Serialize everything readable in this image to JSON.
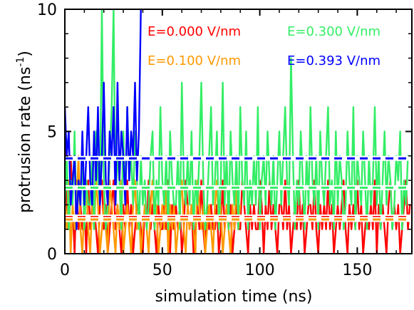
{
  "chart_data": {
    "type": "line",
    "xlabel": "simulation time (ns)",
    "ylabel_main": "protrusion rate (ns",
    "ylabel_sup": "-1",
    "ylabel_close": ")",
    "xlim": [
      0,
      178
    ],
    "ylim": [
      0,
      10
    ],
    "xticks": [
      0,
      50,
      100,
      150
    ],
    "yticks": [
      0,
      5,
      10
    ],
    "grid": false,
    "legend_placement": "top",
    "series": [
      {
        "name": "E=0.000 V/nm",
        "color": "#ff0000",
        "mean": 1.5,
        "x": [
          0,
          1,
          2,
          3,
          4,
          5,
          6,
          7,
          8,
          9,
          10,
          11,
          12,
          13,
          14,
          15,
          16,
          17,
          18,
          19,
          20,
          21,
          22,
          23,
          24,
          25,
          26,
          27,
          28,
          29,
          30,
          31,
          32,
          33,
          34,
          35,
          36,
          37,
          38,
          39,
          40,
          41,
          42,
          43,
          44,
          45,
          46,
          47,
          48,
          49,
          50,
          51,
          52,
          53,
          54,
          55,
          56,
          57,
          58,
          59,
          60,
          61,
          62,
          63,
          64,
          65,
          66,
          67,
          68,
          69,
          70,
          71,
          72,
          73,
          74,
          75,
          76,
          77,
          78,
          79,
          80,
          81,
          82,
          83,
          84,
          85,
          86,
          87,
          88,
          89,
          90,
          91,
          92,
          93,
          94,
          95,
          96,
          97,
          98,
          99,
          100,
          101,
          102,
          103,
          104,
          105,
          106,
          107,
          108,
          109,
          110,
          111,
          112,
          113,
          114,
          115,
          116,
          117,
          118,
          119,
          120,
          121,
          122,
          123,
          124,
          125,
          126,
          127,
          128,
          129,
          130,
          131,
          132,
          133,
          134,
          135,
          136,
          137,
          138,
          139,
          140,
          141,
          142,
          143,
          144,
          145,
          146,
          147,
          148,
          149,
          150,
          151,
          152,
          153,
          154,
          155,
          156,
          157,
          158,
          159,
          160,
          161,
          162,
          163,
          164,
          165,
          166,
          167,
          168,
          169,
          170,
          171,
          172,
          173,
          174,
          175,
          176,
          177
        ],
        "values": [
          6,
          2,
          1,
          4,
          2,
          0,
          3,
          1,
          2,
          1,
          2,
          0,
          3,
          1,
          2,
          2,
          1,
          0,
          2,
          3,
          1,
          2,
          0,
          1,
          2,
          3,
          1,
          2,
          1,
          0,
          2,
          1,
          3,
          1,
          2,
          0,
          1,
          2,
          2,
          1,
          0,
          2,
          1,
          3,
          1,
          2,
          1,
          0,
          2,
          1,
          1,
          2,
          1,
          3,
          0,
          2,
          1,
          2,
          1,
          2,
          0,
          1,
          3,
          2,
          1,
          2,
          0,
          1,
          2,
          1,
          3,
          1,
          0,
          2,
          1,
          2,
          1,
          1,
          2,
          0,
          1,
          3,
          1,
          2,
          1,
          2,
          0,
          1,
          2,
          1,
          1,
          3,
          2,
          1,
          0,
          2,
          1,
          2,
          1,
          1,
          3,
          2,
          0,
          2,
          1,
          3,
          1,
          2,
          1,
          0,
          2,
          2,
          1,
          3,
          1,
          2,
          0,
          1,
          2,
          1,
          3,
          1,
          2,
          0,
          1,
          2,
          2,
          1,
          3,
          1,
          0,
          2,
          1,
          2,
          1,
          3,
          1,
          2,
          0,
          1,
          2,
          1,
          2,
          3,
          1,
          0,
          2,
          1,
          2,
          1,
          3,
          1,
          2,
          0,
          1,
          2,
          1,
          2,
          1,
          3,
          0,
          2,
          1,
          2,
          1,
          0,
          2,
          3,
          1,
          2,
          1,
          2,
          0,
          1,
          2,
          3,
          1,
          2
        ]
      },
      {
        "name": "E=0.100 V/nm",
        "color": "#ff9900",
        "mean": 1.4,
        "x": [
          0,
          1,
          2,
          3,
          4,
          5,
          6,
          7,
          8,
          9,
          10,
          11,
          12,
          13,
          14,
          15,
          16,
          17,
          18,
          19,
          20,
          21,
          22,
          23,
          24,
          25,
          26,
          27,
          28,
          29,
          30,
          31,
          32,
          33,
          34,
          35,
          36,
          37,
          38,
          39,
          40,
          41,
          42,
          43,
          44,
          45,
          46,
          47,
          48,
          49,
          50,
          51,
          52,
          53,
          54,
          55,
          56,
          57,
          58,
          59,
          60,
          61,
          62,
          63,
          64,
          65,
          66,
          67,
          68,
          69,
          70,
          71,
          72,
          73,
          74,
          75,
          76,
          77,
          78,
          79,
          80,
          81,
          82,
          83,
          84,
          85,
          86,
          87,
          88,
          89,
          90
        ],
        "values": [
          2,
          1,
          3,
          0,
          2,
          1,
          2,
          4,
          1,
          0,
          2,
          3,
          1,
          0,
          2,
          1,
          3,
          2,
          0,
          1,
          2,
          1,
          0,
          3,
          2,
          1,
          0,
          2,
          1,
          3,
          0,
          1,
          2,
          1,
          0,
          2,
          3,
          1,
          2,
          0,
          1,
          2,
          1,
          0,
          2,
          3,
          1,
          2,
          0,
          1,
          2,
          1,
          3,
          0,
          2,
          1,
          2,
          0,
          1,
          2,
          3,
          1,
          0,
          2,
          1,
          2,
          1,
          0,
          3,
          2,
          1,
          2,
          0,
          1,
          2,
          1,
          0,
          2,
          3,
          1,
          2,
          0,
          1,
          2,
          1,
          0,
          2,
          1,
          3,
          1,
          2
        ]
      },
      {
        "name": "E=0.300 V/nm",
        "color": "#33ee66",
        "mean": 2.7,
        "x": [
          0,
          1,
          2,
          3,
          4,
          5,
          6,
          7,
          8,
          9,
          10,
          11,
          12,
          13,
          14,
          15,
          16,
          17,
          18,
          19,
          20,
          21,
          22,
          23,
          24,
          25,
          26,
          27,
          28,
          29,
          30,
          31,
          32,
          33,
          34,
          35,
          36,
          37,
          38,
          39,
          40,
          41,
          42,
          43,
          44,
          45,
          46,
          47,
          48,
          49,
          50,
          51,
          52,
          53,
          54,
          55,
          56,
          57,
          58,
          59,
          60,
          61,
          62,
          63,
          64,
          65,
          66,
          67,
          68,
          69,
          70,
          71,
          72,
          73,
          74,
          75,
          76,
          77,
          78,
          79,
          80,
          81,
          82,
          83,
          84,
          85,
          86,
          87,
          88,
          89,
          90,
          91,
          92,
          93,
          94,
          95,
          96,
          97,
          98,
          99,
          100,
          101,
          102,
          103,
          104,
          105,
          106,
          107,
          108,
          109,
          110,
          111,
          112,
          113,
          114,
          115,
          116,
          117,
          118,
          119,
          120,
          121,
          122,
          123,
          124,
          125,
          126,
          127,
          128,
          129,
          130,
          131,
          132,
          133,
          134,
          135,
          136,
          137,
          138,
          139,
          140,
          141,
          142,
          143,
          144,
          145,
          146,
          147,
          148,
          149,
          150,
          151,
          152,
          153,
          154,
          155,
          156,
          157,
          158,
          159,
          160,
          161,
          162,
          163,
          164,
          165,
          166,
          167,
          168,
          169,
          170,
          171,
          172,
          173,
          174,
          175,
          176,
          177
        ],
        "values": [
          2,
          4,
          1,
          3,
          2,
          5,
          1,
          3,
          2,
          4,
          1,
          3,
          2,
          2,
          4,
          1,
          5,
          3,
          2,
          10,
          3,
          1,
          2,
          4,
          6,
          10,
          2,
          4,
          3,
          1,
          5,
          2,
          6,
          3,
          4,
          2,
          5,
          3,
          1,
          4,
          2,
          3,
          1,
          2,
          4,
          5,
          1,
          3,
          2,
          6,
          3,
          2,
          4,
          1,
          5,
          3,
          2,
          2,
          4,
          1,
          7,
          3,
          2,
          4,
          2,
          5,
          1,
          3,
          2,
          4,
          7,
          3,
          1,
          2,
          4,
          6,
          2,
          3,
          5,
          1,
          3,
          7,
          2,
          4,
          1,
          5,
          3,
          2,
          4,
          1,
          6,
          3,
          2,
          5,
          1,
          3,
          2,
          4,
          2,
          6,
          1,
          3,
          4,
          2,
          5,
          3,
          2,
          4,
          1,
          3,
          5,
          2,
          4,
          6,
          3,
          2,
          8,
          4,
          1,
          3,
          2,
          5,
          3,
          1,
          4,
          2,
          6,
          3,
          2,
          4,
          1,
          5,
          3,
          2,
          4,
          6,
          2,
          3,
          1,
          5,
          2,
          4,
          3,
          1,
          2,
          5,
          3,
          2,
          6,
          1,
          4,
          3,
          2,
          5,
          3,
          1,
          4,
          2,
          3,
          6,
          2,
          4,
          1,
          3,
          5,
          2,
          4,
          3,
          1,
          2,
          4,
          3,
          5,
          1,
          3,
          2,
          4,
          4
        ]
      },
      {
        "name": "E=0.393 V/nm",
        "color": "#0000ff",
        "mean": 3.9,
        "x": [
          0,
          1,
          2,
          3,
          4,
          5,
          6,
          7,
          8,
          9,
          10,
          11,
          12,
          13,
          14,
          15,
          16,
          17,
          18,
          19,
          20,
          21,
          22,
          23,
          24,
          25,
          26,
          27,
          28,
          29,
          30,
          31,
          32,
          33,
          34,
          35,
          36,
          37,
          38,
          39
        ],
        "values": [
          6,
          4,
          5,
          2,
          3,
          4,
          1,
          3,
          2,
          5,
          2,
          4,
          6,
          3,
          2,
          5,
          3,
          6,
          2,
          4,
          7,
          3,
          2,
          5,
          4,
          6,
          2,
          7,
          3,
          5,
          4,
          2,
          6,
          3,
          5,
          4,
          7,
          3,
          5,
          10
        ]
      }
    ],
    "legend": [
      {
        "text": "E=0.000 V/nm",
        "color": "#ff0000"
      },
      {
        "text": "E=0.300 V/nm",
        "color": "#33ee66"
      },
      {
        "text": "E=0.100 V/nm",
        "color": "#ff9900"
      },
      {
        "text": "E=0.393 V/nm",
        "color": "#0000ff"
      }
    ]
  }
}
